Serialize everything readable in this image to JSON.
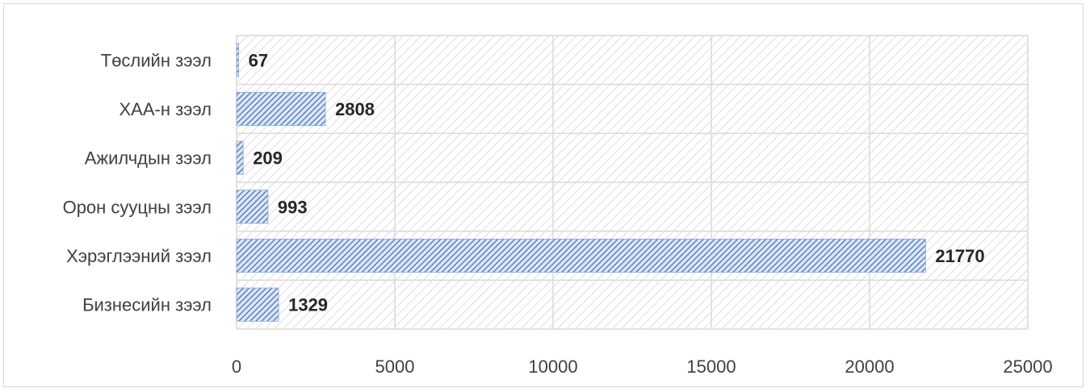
{
  "chart_data": {
    "type": "bar",
    "orientation": "horizontal",
    "categories": [
      "Төслийн зээл",
      "ХАА-н зээл",
      "Ажилчдын зээл",
      "Орон сууцны зээл",
      "Хэрэглээний зээл",
      "Бизнесийн зээл"
    ],
    "values": [
      67,
      2808,
      209,
      993,
      21770,
      1329
    ],
    "value_labels": [
      "67",
      "2808",
      "209",
      "993",
      "21770",
      "1329"
    ],
    "xlim": [
      0,
      25000
    ],
    "xticks": [
      "0",
      "5000",
      "10000",
      "15000",
      "20000",
      "25000"
    ],
    "xtick_values": [
      0,
      5000,
      10000,
      15000,
      20000,
      25000
    ],
    "grid": true,
    "plot_background": "hatched",
    "bar_fill": "hatched blue",
    "colors": {
      "bar": "#4a72b8",
      "bar_light": "#dce6f4",
      "grid": "#d9d9d9",
      "hatch": "#d0d0d0"
    }
  }
}
